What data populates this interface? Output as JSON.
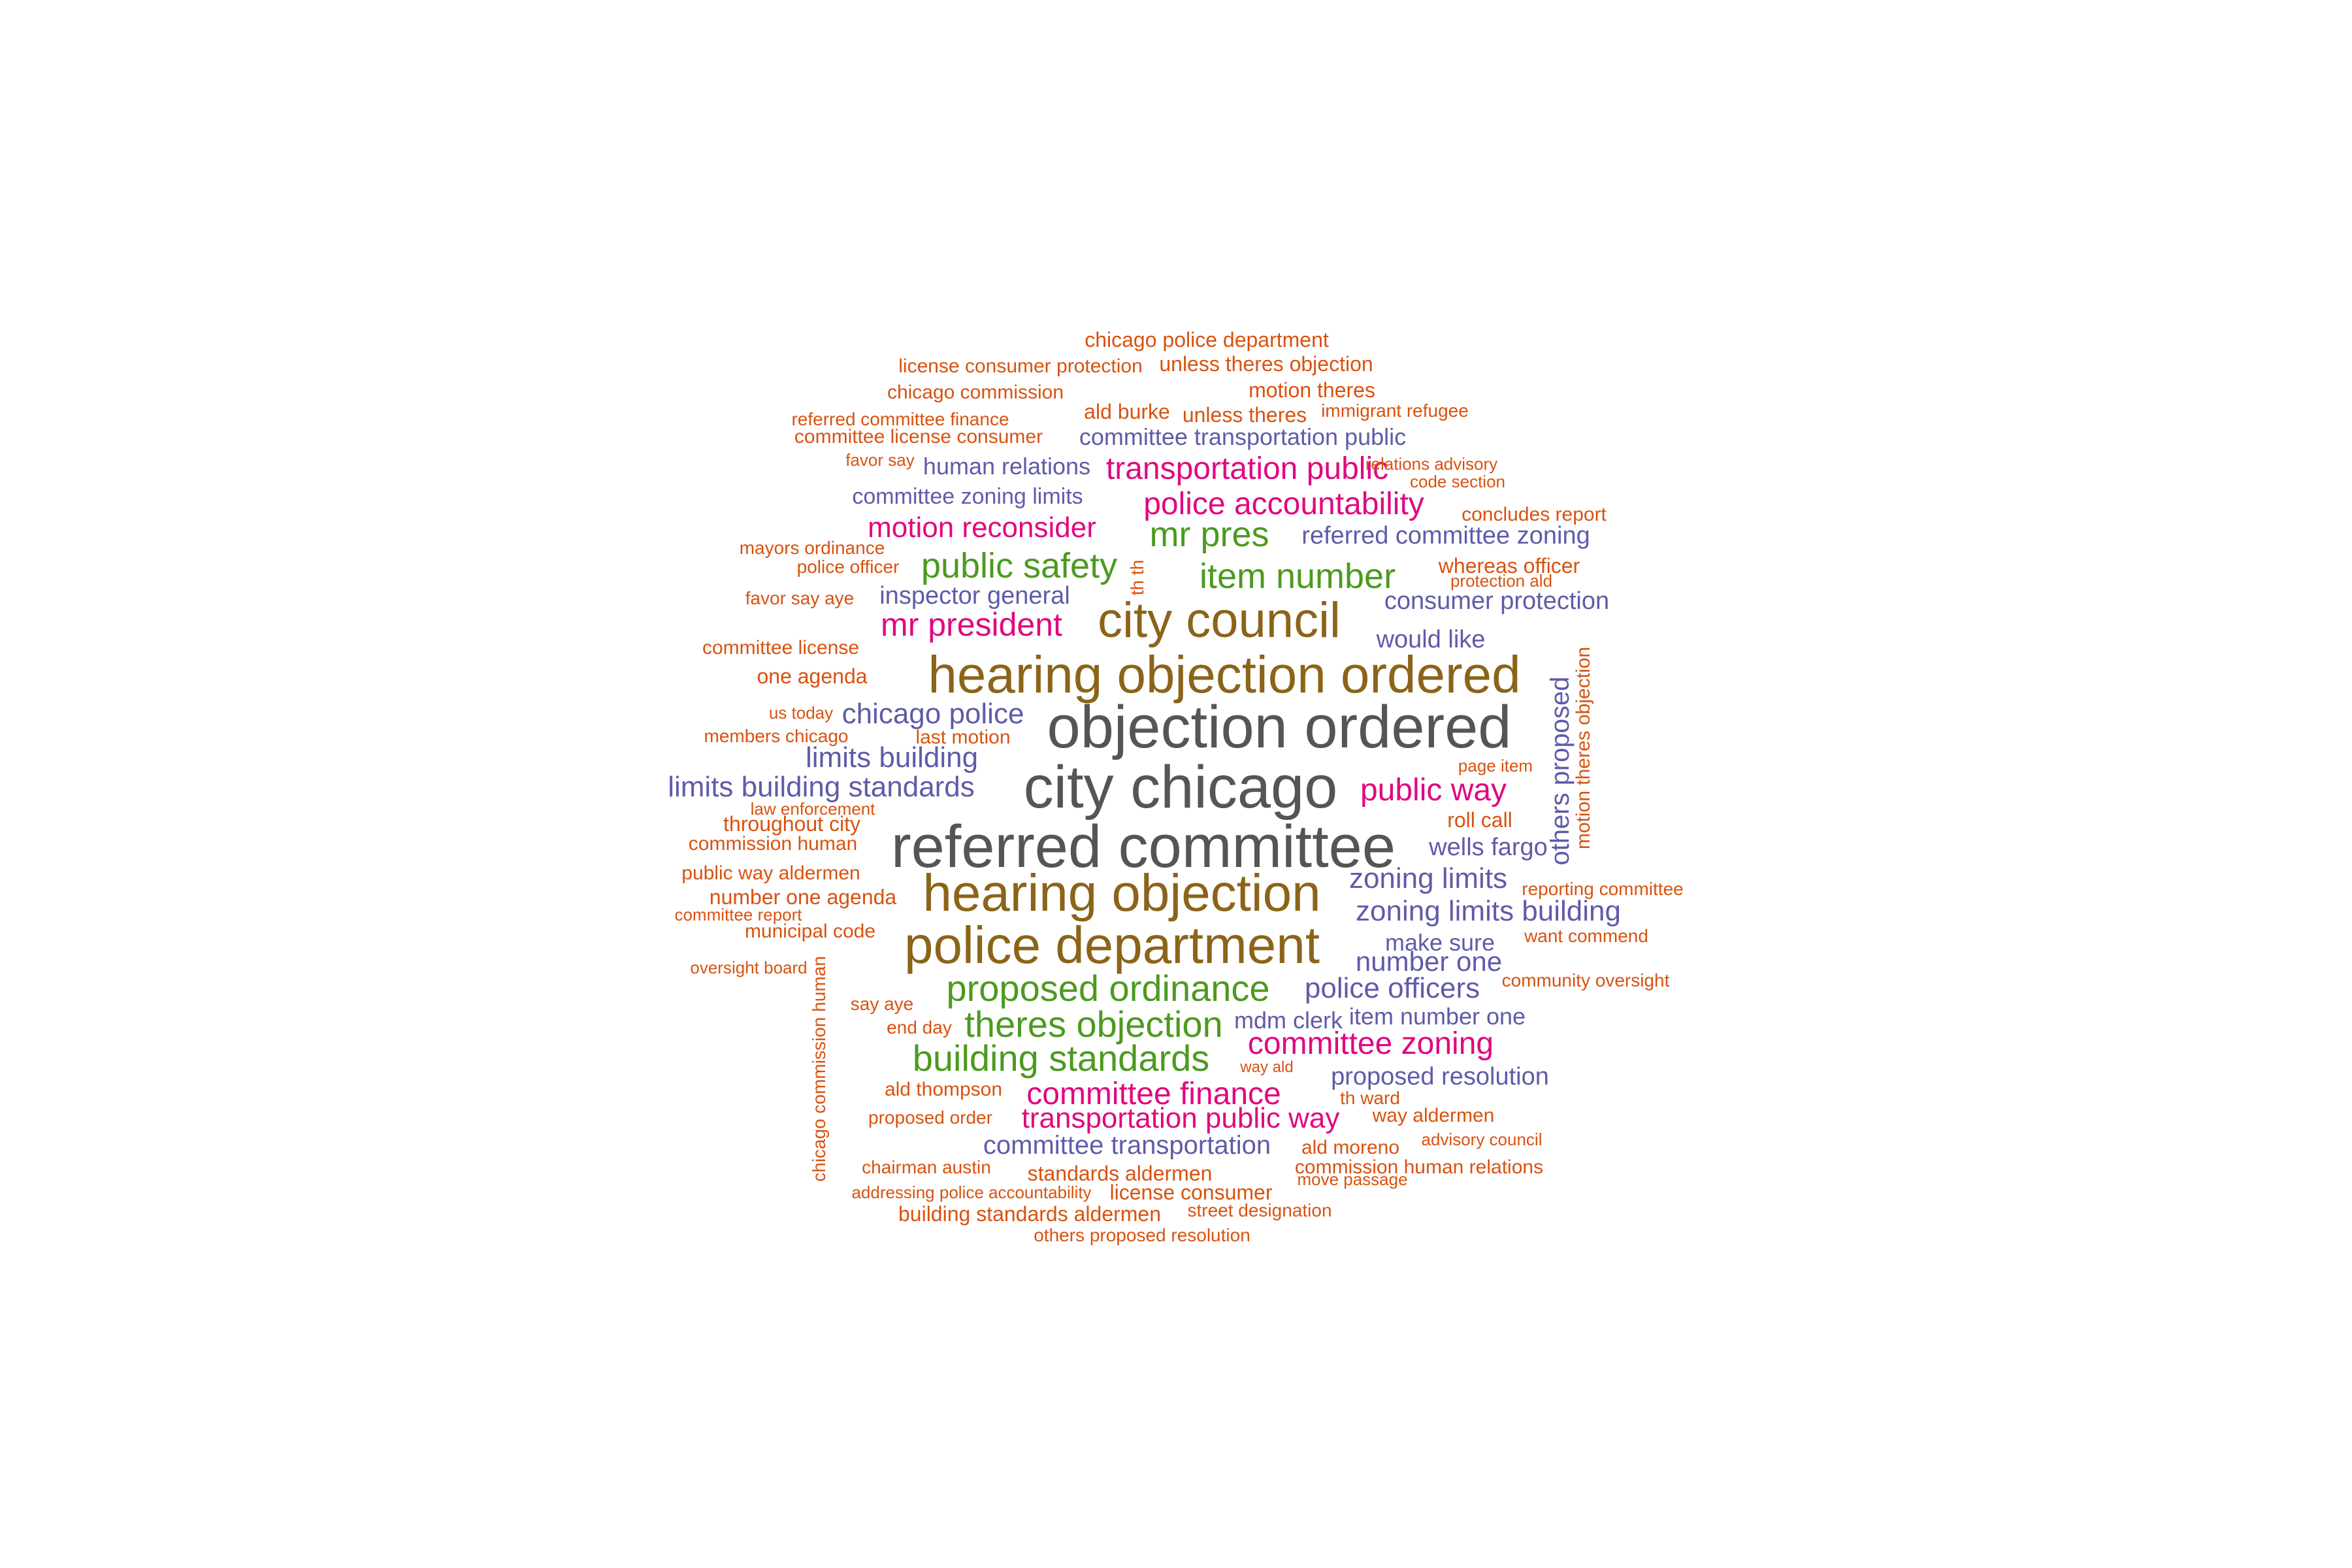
{
  "colors": {
    "gray": "#555555",
    "brown": "#8B6419",
    "green": "#4C9A1F",
    "magenta": "#E0087F",
    "purple": "#5F5BA9",
    "orange": "#D9520F"
  },
  "words": [
    {
      "text": "objection ordered",
      "color": "gray"
    },
    {
      "text": "referred committee",
      "color": "gray"
    },
    {
      "text": "city chicago",
      "color": "gray"
    },
    {
      "text": "hearing objection ordered",
      "color": "brown"
    },
    {
      "text": "hearing objection",
      "color": "brown"
    },
    {
      "text": "police department",
      "color": "brown"
    },
    {
      "text": "city council",
      "color": "brown"
    },
    {
      "text": "proposed ordinance",
      "color": "green"
    },
    {
      "text": "theres objection",
      "color": "green"
    },
    {
      "text": "building standards",
      "color": "green"
    },
    {
      "text": "public safety",
      "color": "green"
    },
    {
      "text": "item number",
      "color": "green"
    },
    {
      "text": "mr pres",
      "color": "green"
    },
    {
      "text": "mr president",
      "color": "magenta"
    },
    {
      "text": "transportation public",
      "color": "magenta"
    },
    {
      "text": "police accountability",
      "color": "magenta"
    },
    {
      "text": "motion reconsider",
      "color": "magenta"
    },
    {
      "text": "public way",
      "color": "magenta"
    },
    {
      "text": "committee zoning",
      "color": "magenta"
    },
    {
      "text": "committee finance",
      "color": "magenta"
    },
    {
      "text": "transportation public way",
      "color": "magenta"
    },
    {
      "text": "committee transportation public",
      "color": "purple"
    },
    {
      "text": "human relations",
      "color": "purple"
    },
    {
      "text": "committee zoning limits",
      "color": "purple"
    },
    {
      "text": "referred committee zoning",
      "color": "purple"
    },
    {
      "text": "inspector general",
      "color": "purple"
    },
    {
      "text": "consumer protection",
      "color": "purple"
    },
    {
      "text": "would like",
      "color": "purple"
    },
    {
      "text": "chicago police",
      "color": "purple"
    },
    {
      "text": "limits building",
      "color": "purple"
    },
    {
      "text": "limits building standards",
      "color": "purple"
    },
    {
      "text": "wells fargo",
      "color": "purple"
    },
    {
      "text": "zoning limits",
      "color": "purple"
    },
    {
      "text": "zoning limits building",
      "color": "purple"
    },
    {
      "text": "make sure",
      "color": "purple"
    },
    {
      "text": "number one",
      "color": "purple"
    },
    {
      "text": "police officers",
      "color": "purple"
    },
    {
      "text": "mdm clerk",
      "color": "purple"
    },
    {
      "text": "item number one",
      "color": "purple"
    },
    {
      "text": "proposed resolution",
      "color": "purple"
    },
    {
      "text": "committee transportation",
      "color": "purple"
    },
    {
      "text": "others proposed",
      "color": "purple"
    },
    {
      "text": "chicago police department",
      "color": "orange"
    },
    {
      "text": "license consumer protection",
      "color": "orange"
    },
    {
      "text": "unless theres objection",
      "color": "orange"
    },
    {
      "text": "chicago commission",
      "color": "orange"
    },
    {
      "text": "motion theres",
      "color": "orange"
    },
    {
      "text": "referred committee finance",
      "color": "orange"
    },
    {
      "text": "ald burke",
      "color": "orange"
    },
    {
      "text": "unless theres",
      "color": "orange"
    },
    {
      "text": "immigrant refugee",
      "color": "orange"
    },
    {
      "text": "committee license consumer",
      "color": "orange"
    },
    {
      "text": "favor say",
      "color": "orange"
    },
    {
      "text": "relations advisory",
      "color": "orange"
    },
    {
      "text": "code section",
      "color": "orange"
    },
    {
      "text": "concludes report",
      "color": "orange"
    },
    {
      "text": "mayors ordinance",
      "color": "orange"
    },
    {
      "text": "police officer",
      "color": "orange"
    },
    {
      "text": "whereas officer",
      "color": "orange"
    },
    {
      "text": "protection ald",
      "color": "orange"
    },
    {
      "text": "favor say aye",
      "color": "orange"
    },
    {
      "text": "th th",
      "color": "orange"
    },
    {
      "text": "committee license",
      "color": "orange"
    },
    {
      "text": "one agenda",
      "color": "orange"
    },
    {
      "text": "us today",
      "color": "orange"
    },
    {
      "text": "members chicago",
      "color": "orange"
    },
    {
      "text": "last motion",
      "color": "orange"
    },
    {
      "text": "page item",
      "color": "orange"
    },
    {
      "text": "law enforcement",
      "color": "orange"
    },
    {
      "text": "throughout city",
      "color": "orange"
    },
    {
      "text": "roll call",
      "color": "orange"
    },
    {
      "text": "commission human",
      "color": "orange"
    },
    {
      "text": "public way aldermen",
      "color": "orange"
    },
    {
      "text": "reporting committee",
      "color": "orange"
    },
    {
      "text": "number one agenda",
      "color": "orange"
    },
    {
      "text": "committee report",
      "color": "orange"
    },
    {
      "text": "municipal code",
      "color": "orange"
    },
    {
      "text": "want commend",
      "color": "orange"
    },
    {
      "text": "oversight board",
      "color": "orange"
    },
    {
      "text": "community oversight",
      "color": "orange"
    },
    {
      "text": "say aye",
      "color": "orange"
    },
    {
      "text": "end day",
      "color": "orange"
    },
    {
      "text": "way ald",
      "color": "orange"
    },
    {
      "text": "ald thompson",
      "color": "orange"
    },
    {
      "text": "th ward",
      "color": "orange"
    },
    {
      "text": "proposed order",
      "color": "orange"
    },
    {
      "text": "way aldermen",
      "color": "orange"
    },
    {
      "text": "advisory council",
      "color": "orange"
    },
    {
      "text": "ald moreno",
      "color": "orange"
    },
    {
      "text": "chairman austin",
      "color": "orange"
    },
    {
      "text": "standards aldermen",
      "color": "orange"
    },
    {
      "text": "commission human relations",
      "color": "orange"
    },
    {
      "text": "move passage",
      "color": "orange"
    },
    {
      "text": "addressing police accountability",
      "color": "orange"
    },
    {
      "text": "license consumer",
      "color": "orange"
    },
    {
      "text": "building standards aldermen",
      "color": "orange"
    },
    {
      "text": "street designation",
      "color": "orange"
    },
    {
      "text": "others proposed resolution",
      "color": "orange"
    },
    {
      "text": "chicago commission human",
      "color": "orange"
    },
    {
      "text": "motion theres objection",
      "color": "orange"
    }
  ]
}
